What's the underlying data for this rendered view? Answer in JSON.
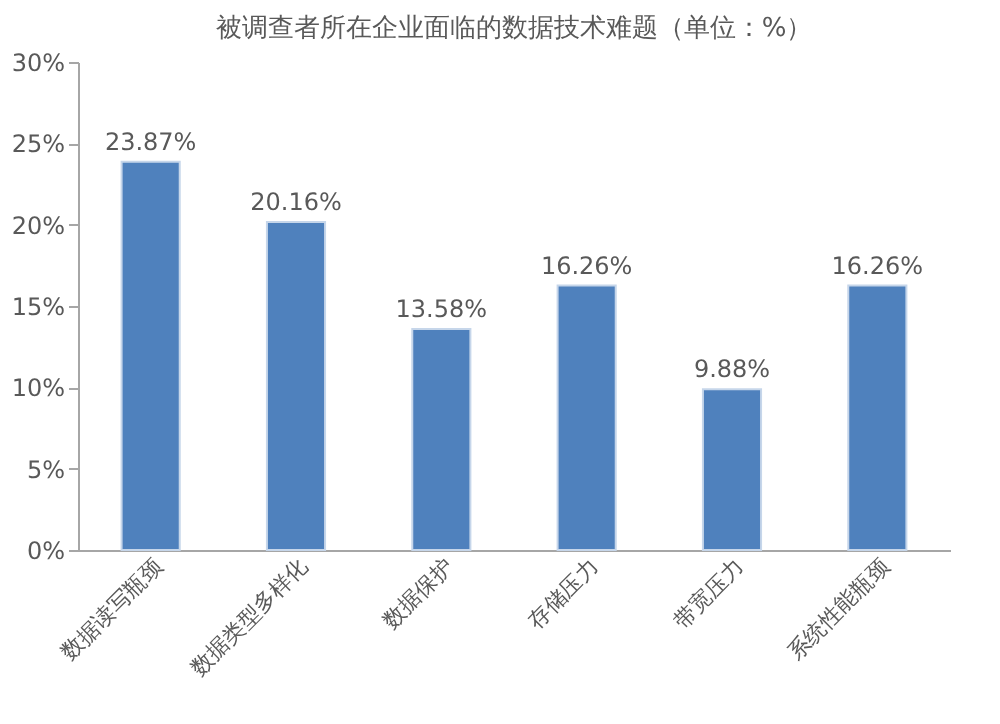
{
  "chart_data": {
    "type": "bar",
    "title": "被调查者所在企业面临的数据技术难题（单位：%）",
    "categories": [
      "数据读写瓶颈",
      "数据类型多样化",
      "数据保护",
      "存储压力",
      "带宽压力",
      "系统性能瓶颈"
    ],
    "values": [
      23.87,
      20.16,
      13.58,
      16.26,
      9.88,
      16.26
    ],
    "value_labels": [
      "23.87%",
      "20.16%",
      "13.58%",
      "16.26%",
      "9.88%",
      "16.26%"
    ],
    "color": "#4f81bd",
    "ylim": [
      0,
      30
    ],
    "yticks": [
      {
        "value": 0,
        "label": "0%"
      },
      {
        "value": 5,
        "label": "5%"
      },
      {
        "value": 10,
        "label": "10%"
      },
      {
        "value": 15,
        "label": "15%"
      },
      {
        "value": 20,
        "label": "20%"
      },
      {
        "value": 25,
        "label": "25%"
      },
      {
        "value": 30,
        "label": "30%"
      }
    ],
    "grid": false
  }
}
